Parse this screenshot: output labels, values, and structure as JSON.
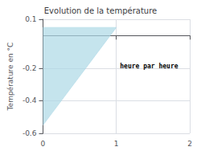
{
  "chart_data": {
    "type": "polygon",
    "title": "Evolution de la température",
    "ylabel": "Température en °C",
    "x": [
      0,
      1,
      0
    ],
    "values": [
      0.05,
      0.05,
      -0.55
    ],
    "color": "#add8e6",
    "xlim": [
      0,
      2
    ],
    "ylim": [
      -0.6,
      0.1
    ],
    "xticks": [
      0,
      1,
      2
    ],
    "yticks": [
      -0.6,
      -0.4,
      -0.2,
      0.1
    ],
    "grid": true,
    "annotations": [
      {
        "text": "heure par heure",
        "x": 1.05,
        "y": -0.19
      }
    ]
  }
}
